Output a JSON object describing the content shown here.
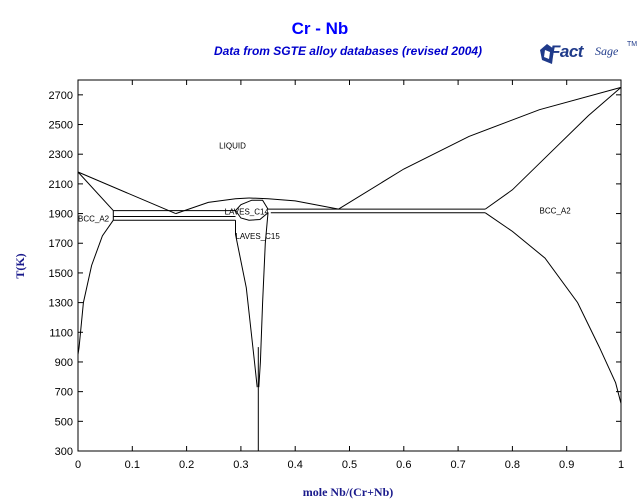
{
  "header": {
    "title": "Cr - Nb",
    "subtitle": "Data from SGTE alloy databases (revised 2004)",
    "logo_text_fact": "Fact",
    "logo_text_sage": "Sage",
    "logo_tm": "TM"
  },
  "colors": {
    "title": "#0000ff",
    "axis_title": "#1a1a8c",
    "lines": "#000000"
  },
  "chart_data": {
    "type": "line",
    "title": "Cr - Nb",
    "subtitle": "Data from SGTE alloy databases (revised 2004)",
    "xlabel": "mole Nb/(Cr+Nb)",
    "ylabel": "T(K)",
    "xlim": [
      0,
      1
    ],
    "ylim": [
      300,
      2800
    ],
    "xticks": [
      0,
      0.1,
      0.2,
      0.3,
      0.4,
      0.5,
      0.6,
      0.7,
      0.8,
      0.9,
      1
    ],
    "xtick_labels": [
      "0",
      "0.1",
      "0.2",
      "0.3",
      "0.4",
      "0.5",
      "0.6",
      "0.7",
      "0.8",
      "0.9",
      "1"
    ],
    "yticks": [
      300,
      500,
      700,
      900,
      1100,
      1300,
      1500,
      1700,
      1900,
      2100,
      2300,
      2500,
      2700
    ],
    "ytick_labels": [
      "300",
      "500",
      "700",
      "900",
      "1100",
      "1300",
      "1500",
      "1700",
      "1900",
      "2100",
      "2300",
      "2500",
      "2700"
    ],
    "grid": false,
    "phase_labels": [
      {
        "text": "LIQUID",
        "x": 0.26,
        "y": 2340
      },
      {
        "text": "BCC_A2",
        "x": 0.0,
        "y": 1845
      },
      {
        "text": "LAVES_C14",
        "x": 0.27,
        "y": 1895
      },
      {
        "text": "LAVES_C15",
        "x": 0.29,
        "y": 1730
      },
      {
        "text": "BCC_A2",
        "x": 0.85,
        "y": 1900
      }
    ],
    "series": [
      {
        "values": [
          [
            0.0,
            2180
          ],
          [
            0.18,
            1900
          ]
        ]
      },
      {
        "values": [
          [
            0.0,
            2180
          ],
          [
            0.065,
            1920
          ]
        ]
      },
      {
        "values": [
          [
            0.18,
            1900
          ],
          [
            0.24,
            1975
          ],
          [
            0.29,
            2000
          ],
          [
            0.315,
            2005
          ]
        ]
      },
      {
        "values": [
          [
            0.315,
            2005
          ],
          [
            0.35,
            2000
          ],
          [
            0.4,
            1985
          ],
          [
            0.48,
            1930
          ]
        ]
      },
      {
        "values": [
          [
            0.48,
            1930
          ],
          [
            0.6,
            2200
          ],
          [
            0.72,
            2420
          ],
          [
            0.85,
            2600
          ],
          [
            1.0,
            2750
          ]
        ]
      },
      {
        "values": [
          [
            0.75,
            1930
          ],
          [
            0.8,
            2060
          ],
          [
            0.87,
            2310
          ],
          [
            0.94,
            2560
          ],
          [
            1.0,
            2750
          ]
        ]
      },
      {
        "values": [
          [
            0.065,
            1920
          ],
          [
            0.29,
            1920
          ]
        ]
      },
      {
        "values": [
          [
            0.35,
            1930
          ],
          [
            0.75,
            1930
          ]
        ]
      },
      {
        "values": [
          [
            0.065,
            1880
          ],
          [
            0.29,
            1880
          ]
        ]
      },
      {
        "values": [
          [
            0.355,
            1905
          ],
          [
            0.75,
            1905
          ]
        ]
      },
      {
        "values": [
          [
            0.065,
            1855
          ],
          [
            0.29,
            1855
          ]
        ]
      },
      {
        "values": [
          [
            0.29,
            1920
          ],
          [
            0.3,
            1960
          ],
          [
            0.32,
            1990
          ],
          [
            0.34,
            1990
          ],
          [
            0.35,
            1930
          ]
        ]
      },
      {
        "values": [
          [
            0.29,
            1920
          ],
          [
            0.3,
            1870
          ],
          [
            0.315,
            1855
          ],
          [
            0.335,
            1860
          ],
          [
            0.35,
            1905
          ]
        ]
      },
      {
        "values": [
          [
            0.065,
            1920
          ],
          [
            0.065,
            1855
          ]
        ]
      },
      {
        "values": [
          [
            0.065,
            1855
          ],
          [
            0.045,
            1750
          ],
          [
            0.025,
            1550
          ],
          [
            0.01,
            1300
          ],
          [
            0.002,
            1000
          ],
          [
            0.0,
            950
          ]
        ]
      },
      {
        "values": [
          [
            0.29,
            1855
          ],
          [
            0.29,
            1760
          ],
          [
            0.31,
            1400
          ],
          [
            0.325,
            900
          ],
          [
            0.33,
            730
          ]
        ]
      },
      {
        "values": [
          [
            0.35,
            1905
          ],
          [
            0.345,
            1700
          ],
          [
            0.34,
            1300
          ],
          [
            0.336,
            900
          ],
          [
            0.333,
            730
          ]
        ]
      },
      {
        "values": [
          [
            0.332,
            300
          ],
          [
            0.332,
            1000
          ]
        ]
      },
      {
        "values": [
          [
            0.75,
            1905
          ],
          [
            0.8,
            1780
          ],
          [
            0.86,
            1600
          ],
          [
            0.92,
            1300
          ],
          [
            0.96,
            1000
          ],
          [
            0.99,
            760
          ],
          [
            1.0,
            620
          ]
        ]
      }
    ]
  }
}
